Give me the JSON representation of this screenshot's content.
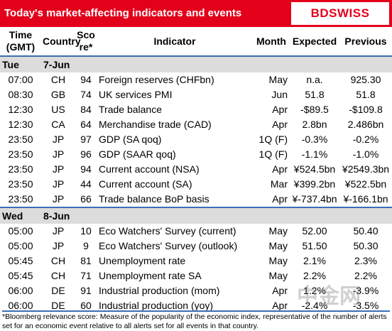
{
  "header": {
    "title": "Today's market-affecting indicators and events",
    "logo": "BDSWISS"
  },
  "columns": [
    "Time (GMT)",
    "Country",
    "Score*",
    "Indicator",
    "Month",
    "Expected",
    "Previous"
  ],
  "days": [
    {
      "day": "Tue",
      "date": "7-Jun",
      "rows": [
        [
          "07:00",
          "CH",
          94,
          "Foreign reserves (CHFbn)",
          "May",
          "n.a.",
          "925.30"
        ],
        [
          "08:30",
          "GB",
          74,
          "UK services PMI",
          "Jun",
          "51.8",
          "51.8"
        ],
        [
          "12:30",
          "US",
          84,
          "Trade balance",
          "Apr",
          "-$89.5",
          "-$109.8"
        ],
        [
          "12:30",
          "CA",
          64,
          "Merchandise trade (CAD)",
          "Apr",
          "2.8bn",
          "2.486bn"
        ],
        [
          "23:50",
          "JP",
          97,
          "GDP (SA qoq)",
          "1Q (F)",
          "-0.3%",
          "-0.2%"
        ],
        [
          "23:50",
          "JP",
          96,
          "GDP (SAAR qoq)",
          "1Q (F)",
          "-1.1%",
          "-1.0%"
        ],
        [
          "23:50",
          "JP",
          94,
          "Current account  (NSA)",
          "Apr",
          "¥524.5bn",
          "¥2549.3bn"
        ],
        [
          "23:50",
          "JP",
          44,
          "Current account  (SA)",
          "Mar",
          "¥399.2bn",
          "¥522.5bn"
        ],
        [
          "23:50",
          "JP",
          66,
          "Trade balance BoP basis",
          "Apr",
          "¥-737.4bn",
          "¥-166.1bn"
        ]
      ]
    },
    {
      "day": "Wed",
      "date": "8-Jun",
      "rows": [
        [
          "05:00",
          "JP",
          10,
          "Eco Watchers' Survey (current)",
          "May",
          "52.00",
          "50.40"
        ],
        [
          "05:00",
          "JP",
          9,
          "Eco Watchers' Survey (outlook)",
          "May",
          "51.50",
          "50.30"
        ],
        [
          "05:45",
          "CH",
          81,
          "Unemployment rate",
          "May",
          "2.1%",
          "2.3%"
        ],
        [
          "05:45",
          "CH",
          71,
          "Unemployment rate SA",
          "May",
          "2.2%",
          "2.2%"
        ],
        [
          "06:00",
          "DE",
          91,
          "Industrial production (mom)",
          "Apr",
          "1.2%",
          "-3.9%"
        ],
        [
          "06:00",
          "DE",
          60,
          "Industrial production (yoy)",
          "Apr",
          "-2.4%",
          "-3.5%"
        ]
      ]
    }
  ],
  "footnote": "*Bloomberg relevance score:  Measure of the popularity of the economic index, representative of the number of alerts set for an economic event relative to all alerts set for all events in that country.",
  "watermark": "中金网"
}
